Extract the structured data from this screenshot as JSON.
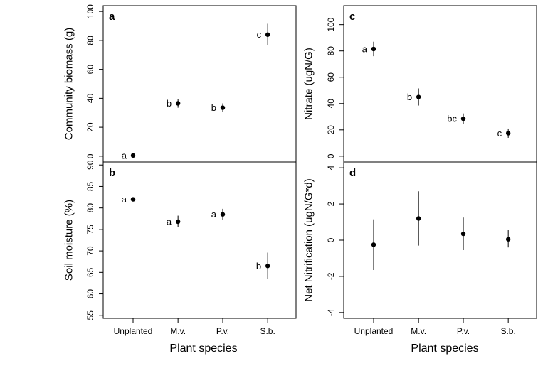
{
  "figure": {
    "xlabel": "Plant species"
  },
  "chart_data": [
    {
      "id": "a",
      "type": "scatter",
      "panel_label": "a",
      "ylabel": "Community biomass (g)",
      "xlabel": "",
      "categories": [
        "Unplanted",
        "M.v.",
        "P.v.",
        "S.b."
      ],
      "show_category_labels": false,
      "ylim": [
        -4,
        104
      ],
      "yticks": [
        0,
        20,
        40,
        60,
        80,
        100
      ],
      "points": [
        {
          "category": "Unplanted",
          "mean": 0.5,
          "low": 0.5,
          "high": 0.5,
          "letter": "a"
        },
        {
          "category": "M.v.",
          "mean": 36.5,
          "low": 33.5,
          "high": 39.5,
          "letter": "b"
        },
        {
          "category": "P.v.",
          "mean": 33.5,
          "low": 30.5,
          "high": 36.5,
          "letter": "b"
        },
        {
          "category": "S.b.",
          "mean": 84,
          "low": 76.5,
          "high": 91.5,
          "letter": "c"
        }
      ],
      "grid": false,
      "legend": "none"
    },
    {
      "id": "b",
      "type": "scatter",
      "panel_label": "b",
      "ylabel": "Soil moisture (%)",
      "xlabel": "Plant species",
      "categories": [
        "Unplanted",
        "M.v.",
        "P.v.",
        "S.b."
      ],
      "show_category_labels": true,
      "ylim": [
        54.3,
        90.7
      ],
      "yticks": [
        55,
        60,
        65,
        70,
        75,
        80,
        85,
        90
      ],
      "points": [
        {
          "category": "Unplanted",
          "mean": 82,
          "low": 82,
          "high": 82,
          "letter": "a"
        },
        {
          "category": "M.v.",
          "mean": 76.8,
          "low": 75.5,
          "high": 78.2,
          "letter": "a"
        },
        {
          "category": "P.v.",
          "mean": 78.5,
          "low": 77.3,
          "high": 79.8,
          "letter": "a"
        },
        {
          "category": "S.b.",
          "mean": 66.5,
          "low": 63.4,
          "high": 69.6,
          "letter": "b"
        }
      ],
      "grid": false,
      "legend": "none"
    },
    {
      "id": "c",
      "type": "scatter",
      "panel_label": "c",
      "ylabel": "Nitrate (ugN/G)",
      "xlabel": "",
      "categories": [
        "Unplanted",
        "M.v.",
        "P.v.",
        "S.b."
      ],
      "show_category_labels": false,
      "ylim": [
        -4.4,
        114.4
      ],
      "yticks": [
        0,
        20,
        40,
        60,
        80,
        100
      ],
      "points": [
        {
          "category": "Unplanted",
          "mean": 81.5,
          "low": 76,
          "high": 87,
          "letter": "a"
        },
        {
          "category": "M.v.",
          "mean": 45,
          "low": 38.5,
          "high": 51.5,
          "letter": "b"
        },
        {
          "category": "P.v.",
          "mean": 28.5,
          "low": 24.5,
          "high": 32.5,
          "letter": "bc"
        },
        {
          "category": "S.b.",
          "mean": 17.5,
          "low": 14,
          "high": 21,
          "letter": "c"
        }
      ],
      "grid": false,
      "legend": "none"
    },
    {
      "id": "d",
      "type": "scatter",
      "panel_label": "d",
      "ylabel": "Net Nitrification (ugN/G*d)",
      "xlabel": "Plant species",
      "categories": [
        "Unplanted",
        "M.v.",
        "P.v.",
        "S.b."
      ],
      "show_category_labels": true,
      "ylim": [
        -4.32,
        4.32
      ],
      "yticks": [
        -4,
        -2,
        0,
        2,
        4
      ],
      "points": [
        {
          "category": "Unplanted",
          "mean": -0.25,
          "low": -1.65,
          "high": 1.15,
          "letter": ""
        },
        {
          "category": "M.v.",
          "mean": 1.2,
          "low": -0.3,
          "high": 2.7,
          "letter": ""
        },
        {
          "category": "P.v.",
          "mean": 0.35,
          "low": -0.55,
          "high": 1.25,
          "letter": ""
        },
        {
          "category": "S.b.",
          "mean": 0.05,
          "low": -0.4,
          "high": 0.55,
          "letter": ""
        }
      ],
      "grid": false,
      "legend": "none"
    }
  ]
}
